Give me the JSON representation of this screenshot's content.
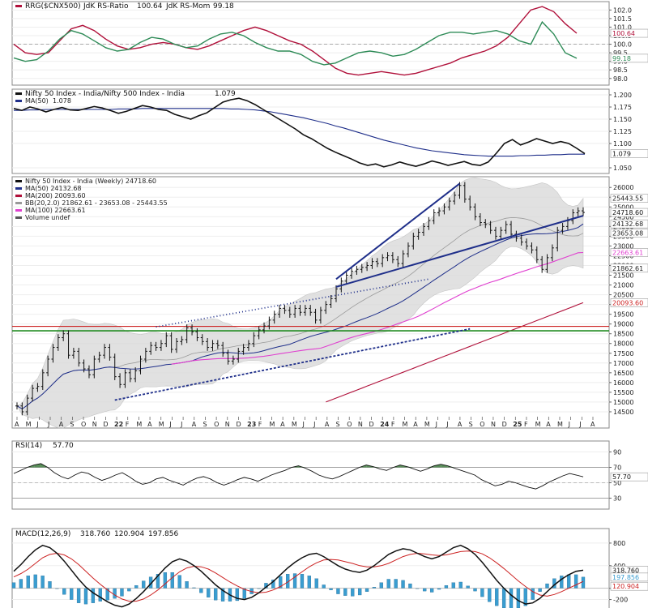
{
  "colors": {
    "black": "#111111",
    "navy": "#1f2f8a",
    "darkred": "#b0103a",
    "green": "#2e8b57",
    "magenta": "#e040d0",
    "red": "#cc2222",
    "band": "#dcdcdc",
    "hist": "#3a9dd0",
    "rsi_fill": "#3c7a3c",
    "grid": "#eeeeee"
  },
  "chart_data": [
    {
      "type": "line",
      "title": "RRG($CNX500) JdK RS-Ratio 100.64 JdK RS-Mom 99.18",
      "legend": {
        "symbol": "RRG($CNX500)",
        "ratio_label": "JdK RS-Ratio",
        "ratio_value": "100.64",
        "mom_label": "JdK RS-Mom",
        "mom_value": "99.18"
      },
      "y_ticks": [
        "102.0",
        "101.5",
        "101.0",
        "100.5",
        "100.0",
        "99.5",
        "99.0",
        "98.5",
        "98.0"
      ],
      "tags": [
        "100.64",
        "99.18"
      ],
      "ylim": [
        97.8,
        102.3
      ],
      "series": [
        {
          "name": "JdK RS-Ratio",
          "values": [
            100.0,
            99.5,
            99.4,
            99.5,
            100.2,
            100.9,
            101.1,
            100.8,
            100.3,
            99.9,
            99.7,
            99.8,
            100.0,
            100.1,
            100.0,
            99.8,
            99.7,
            99.9,
            100.2,
            100.5,
            100.8,
            101.0,
            100.8,
            100.5,
            100.2,
            100.0,
            99.6,
            99.1,
            98.6,
            98.3,
            98.2,
            98.3,
            98.4,
            98.3,
            98.2,
            98.3,
            98.5,
            98.7,
            98.9,
            99.2,
            99.4,
            99.6,
            99.9,
            100.4,
            101.2,
            102.0,
            102.2,
            101.9,
            101.2,
            100.64
          ]
        },
        {
          "name": "JdK RS-Mom",
          "values": [
            99.2,
            99.0,
            99.1,
            99.6,
            100.3,
            100.8,
            100.6,
            100.2,
            99.8,
            99.6,
            99.7,
            100.1,
            100.4,
            100.3,
            100.0,
            99.8,
            99.9,
            100.3,
            100.6,
            100.7,
            100.5,
            100.1,
            99.8,
            99.6,
            99.6,
            99.4,
            99.0,
            98.8,
            98.9,
            99.2,
            99.5,
            99.6,
            99.5,
            99.3,
            99.4,
            99.7,
            100.1,
            100.5,
            100.7,
            100.7,
            100.6,
            100.7,
            100.8,
            100.6,
            100.2,
            100.0,
            101.3,
            100.6,
            99.5,
            99.18
          ]
        }
      ]
    },
    {
      "type": "line",
      "title": "Nifty 50 Index - India/Nifty 500 Index - India 1.079",
      "legend": {
        "ratio_label": "Nifty 50 Index - India/Nifty 500 Index - India",
        "ratio_value": "1.079",
        "ma_label": "MA(50)",
        "ma_value": "1.078"
      },
      "y_ticks": [
        "1.200",
        "1.175",
        "1.150",
        "1.125",
        "1.100",
        "1.050"
      ],
      "tags": [
        "1.079"
      ],
      "ylim": [
        1.045,
        1.205
      ],
      "series": [
        {
          "name": "Nifty 50 Index - India/Nifty 500 Index - India",
          "values": [
            1.172,
            1.168,
            1.175,
            1.171,
            1.165,
            1.17,
            1.174,
            1.169,
            1.168,
            1.172,
            1.176,
            1.173,
            1.168,
            1.162,
            1.166,
            1.172,
            1.178,
            1.175,
            1.17,
            1.168,
            1.16,
            1.155,
            1.15,
            1.157,
            1.163,
            1.174,
            1.185,
            1.19,
            1.193,
            1.188,
            1.18,
            1.17,
            1.16,
            1.15,
            1.14,
            1.13,
            1.118,
            1.11,
            1.1,
            1.09,
            1.082,
            1.075,
            1.068,
            1.06,
            1.055,
            1.058,
            1.052,
            1.056,
            1.062,
            1.057,
            1.053,
            1.058,
            1.064,
            1.06,
            1.055,
            1.059,
            1.063,
            1.057,
            1.055,
            1.062,
            1.08,
            1.1,
            1.108,
            1.097,
            1.103,
            1.11,
            1.105,
            1.1,
            1.104,
            1.1,
            1.09,
            1.079
          ]
        },
        {
          "name": "MA(50)",
          "values": [
            1.168,
            1.168,
            1.169,
            1.169,
            1.17,
            1.17,
            1.17,
            1.17,
            1.17,
            1.17,
            1.17,
            1.17,
            1.17,
            1.171,
            1.171,
            1.171,
            1.172,
            1.172,
            1.172,
            1.172,
            1.172,
            1.172,
            1.172,
            1.172,
            1.172,
            1.172,
            1.172,
            1.171,
            1.171,
            1.17,
            1.169,
            1.167,
            1.165,
            1.162,
            1.159,
            1.156,
            1.153,
            1.149,
            1.145,
            1.141,
            1.136,
            1.132,
            1.127,
            1.122,
            1.117,
            1.112,
            1.107,
            1.103,
            1.099,
            1.095,
            1.091,
            1.088,
            1.085,
            1.083,
            1.081,
            1.079,
            1.077,
            1.076,
            1.075,
            1.074,
            1.074,
            1.074,
            1.074,
            1.075,
            1.075,
            1.076,
            1.076,
            1.077,
            1.077,
            1.078,
            1.078,
            1.078
          ]
        }
      ]
    },
    {
      "type": "line",
      "title": "Nifty 50 Index - India (Weekly) 24718.60",
      "legend": [
        {
          "label": "Nifty 50 Index - India (Weekly) 24718.60",
          "color": "#111111"
        },
        {
          "label": "MA(50) 24132.68",
          "color": "#1f2f8a"
        },
        {
          "label": "MA(200) 20093.60",
          "color": "#b0103a"
        },
        {
          "label": "BB(20,2.0) 21862.61 - 23653.08 - 25443.55",
          "color": "#999999"
        },
        {
          "label": "MA(100) 22663.61",
          "color": "#e040d0"
        },
        {
          "label": "Volume undef",
          "color": "#555555"
        }
      ],
      "y_ticks": [
        "26000",
        "25500",
        "25000",
        "24500",
        "24000",
        "23500",
        "23000",
        "22500",
        "22000",
        "21500",
        "21000",
        "20500",
        "20000",
        "19500",
        "19000",
        "18500",
        "18000",
        "17500",
        "17000",
        "16500",
        "16000",
        "15500",
        "15000",
        "14500"
      ],
      "tags": [
        {
          "text": "25443.55",
          "value": 25443.55,
          "style": "plain"
        },
        {
          "text": "24718.60",
          "value": 24718.6,
          "style": "dark"
        },
        {
          "text": "24132.68",
          "value": 24132.68,
          "style": "plain"
        },
        {
          "text": "23653.08",
          "value": 23653.08,
          "style": "plain"
        },
        {
          "text": "22663.61",
          "value": 22663.61,
          "style": "magenta"
        },
        {
          "text": "21862.61",
          "value": 21862.61,
          "style": "plain"
        },
        {
          "text": "20093.60",
          "value": 20093.6,
          "style": "red"
        }
      ],
      "x_ticks": [
        "A",
        "M",
        "J",
        "J",
        "A",
        "S",
        "O",
        "N",
        "D",
        "22",
        "F",
        "M",
        "A",
        "M",
        "J",
        "J",
        "A",
        "S",
        "O",
        "N",
        "D",
        "23",
        "F",
        "M",
        "A",
        "M",
        "J",
        "J",
        "A",
        "S",
        "O",
        "N",
        "D",
        "24",
        "F",
        "M",
        "A",
        "M",
        "J",
        "J",
        "A",
        "S",
        "O",
        "N",
        "D",
        "25",
        "F",
        "M",
        "A",
        "M",
        "J",
        "J",
        "A"
      ],
      "ylim": [
        14000,
        26300
      ],
      "close": [
        14800,
        14500,
        15200,
        15700,
        15800,
        16500,
        17200,
        17800,
        18300,
        18500,
        17400,
        17600,
        17000,
        16700,
        16400,
        17200,
        17400,
        17800,
        17300,
        16300,
        15900,
        16500,
        16200,
        16600,
        17200,
        17600,
        17900,
        17800,
        18000,
        18400,
        17700,
        18100,
        18200,
        18800,
        18600,
        18300,
        18100,
        17800,
        18000,
        17900,
        17500,
        17100,
        17200,
        17600,
        17800,
        18000,
        18400,
        18700,
        18900,
        19200,
        19500,
        19800,
        19700,
        19500,
        19800,
        19600,
        19800,
        19600,
        19200,
        19700,
        20000,
        20300,
        20800,
        21200,
        21500,
        21700,
        21800,
        21900,
        22000,
        22200,
        22100,
        22400,
        22500,
        22300,
        22100,
        22600,
        23000,
        23500,
        23700,
        24000,
        24300,
        24700,
        24800,
        25000,
        25300,
        25600,
        26100,
        25400,
        25000,
        24500,
        24200,
        24100,
        23800,
        23500,
        23800,
        24100,
        23600,
        23400,
        23200,
        23000,
        22800,
        22300,
        21800,
        22400,
        22900,
        23800,
        24000,
        24300,
        24700,
        24800,
        24718.6
      ],
      "bb_upper_end": 25443.55,
      "bb_mid_end": 23653.08,
      "bb_lower_end": 21862.61,
      "ma50_end": 24132.68,
      "ma100_end": 22663.61,
      "ma200_end": 20093.6,
      "support_level": 18650,
      "resistance_level": 18880
    },
    {
      "type": "line",
      "title": "RSI(14) 57.70",
      "legend": {
        "label": "RSI(14)",
        "value": "57.70"
      },
      "y_ticks": [
        "90",
        "70",
        "50",
        "30"
      ],
      "tags": [
        "57.70"
      ],
      "ylim": [
        20,
        100
      ],
      "values": [
        62,
        66,
        70,
        73,
        75,
        70,
        63,
        58,
        55,
        60,
        64,
        62,
        57,
        53,
        56,
        60,
        63,
        58,
        52,
        48,
        50,
        55,
        57,
        53,
        50,
        47,
        52,
        56,
        58,
        55,
        50,
        47,
        50,
        54,
        57,
        55,
        52,
        56,
        60,
        63,
        66,
        70,
        72,
        69,
        65,
        60,
        57,
        55,
        58,
        62,
        66,
        70,
        73,
        71,
        68,
        66,
        70,
        73,
        71,
        68,
        65,
        68,
        72,
        74,
        72,
        69,
        66,
        63,
        60,
        54,
        50,
        46,
        48,
        52,
        50,
        47,
        44,
        42,
        46,
        51,
        55,
        59,
        62,
        60,
        57.7
      ]
    },
    {
      "type": "line",
      "title": "MACD(12,26,9) 318.760, 120.904, 197.856",
      "legend": {
        "label": "MACD(12,26,9)",
        "macd": "318.760",
        "signal": "120.904",
        "hist": "197.856"
      },
      "y_ticks": [
        "800",
        "400",
        "0",
        "-200"
      ],
      "tags": [
        "318.760",
        "197.856",
        "120.904"
      ],
      "ylim": [
        -350,
        1000
      ],
      "macd": [
        300,
        420,
        560,
        680,
        760,
        720,
        620,
        480,
        320,
        160,
        20,
        -80,
        -160,
        -240,
        -300,
        -330,
        -280,
        -180,
        -60,
        80,
        220,
        360,
        470,
        520,
        480,
        400,
        300,
        180,
        60,
        -40,
        -120,
        -180,
        -200,
        -160,
        -80,
        20,
        120,
        240,
        360,
        460,
        540,
        600,
        620,
        560,
        480,
        400,
        340,
        300,
        280,
        320,
        400,
        500,
        600,
        660,
        700,
        680,
        620,
        560,
        520,
        560,
        640,
        720,
        760,
        700,
        600,
        460,
        300,
        140,
        0,
        -120,
        -220,
        -280,
        -260,
        -180,
        -60,
        60,
        160,
        240,
        300,
        318.76
      ],
      "signal": [
        200,
        260,
        340,
        440,
        540,
        600,
        620,
        590,
        520,
        420,
        300,
        180,
        70,
        -30,
        -120,
        -190,
        -230,
        -230,
        -190,
        -120,
        -30,
        80,
        190,
        290,
        360,
        390,
        380,
        340,
        270,
        190,
        110,
        40,
        -20,
        -60,
        -80,
        -70,
        -30,
        30,
        110,
        200,
        290,
        380,
        450,
        500,
        510,
        500,
        470,
        440,
        400,
        380,
        380,
        400,
        440,
        500,
        560,
        600,
        620,
        610,
        590,
        580,
        590,
        620,
        650,
        660,
        650,
        610,
        540,
        450,
        350,
        240,
        130,
        30,
        -60,
        -120,
        -140,
        -110,
        -60,
        0,
        60,
        120.904
      ]
    }
  ]
}
